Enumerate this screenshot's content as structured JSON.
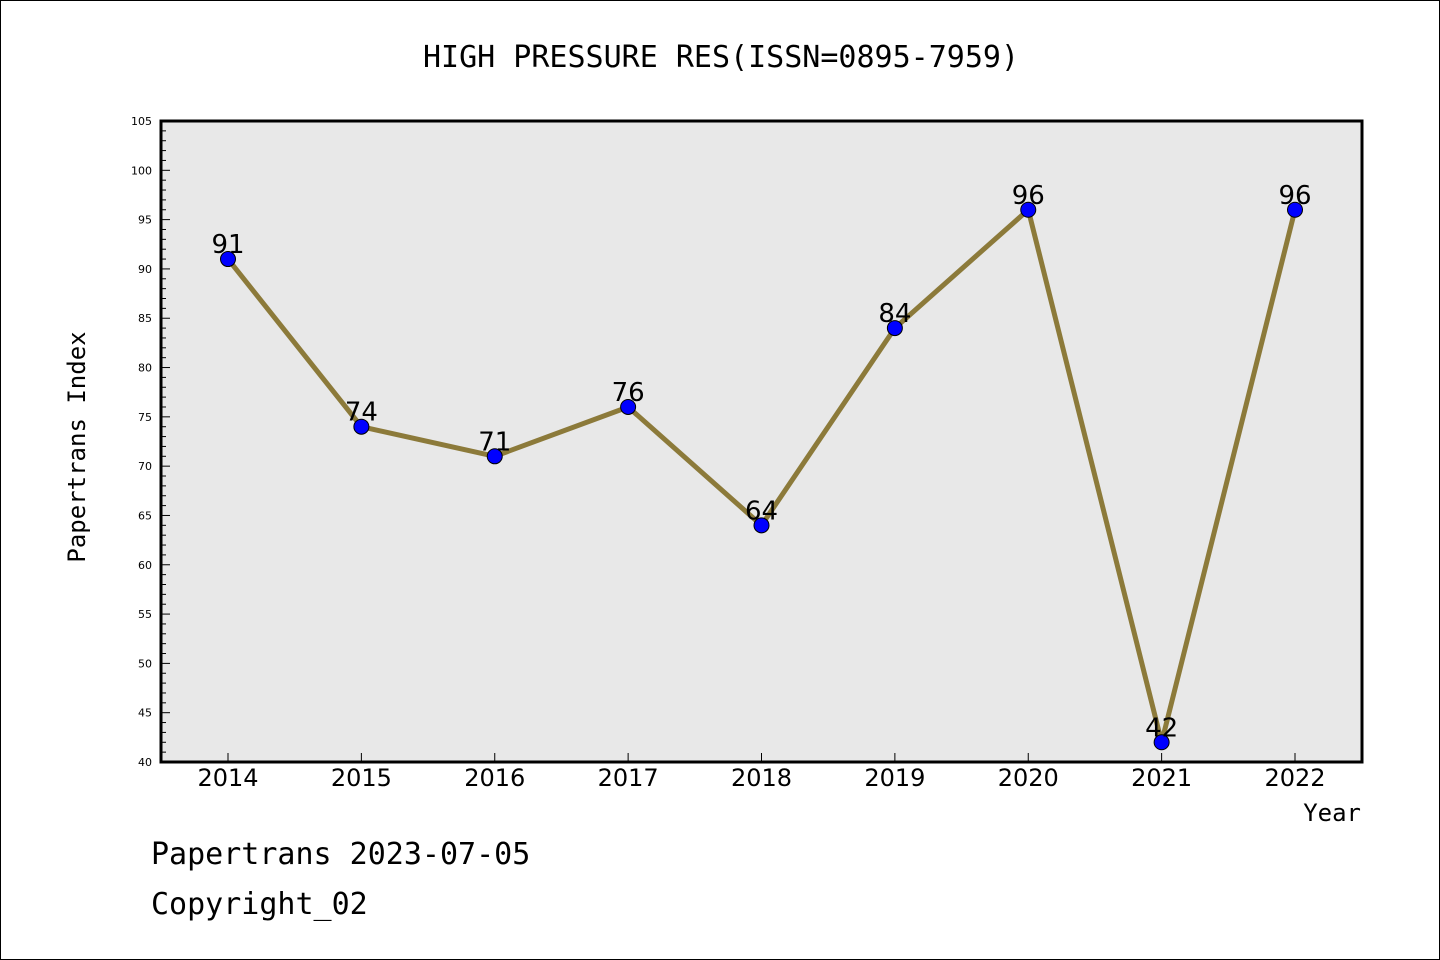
{
  "chart_data": {
    "type": "line",
    "title": "HIGH PRESSURE RES(ISSN=0895-7959)",
    "xlabel": "Year",
    "ylabel": "Papertrans Index",
    "categories": [
      "2014",
      "2015",
      "2016",
      "2017",
      "2018",
      "2019",
      "2020",
      "2021",
      "2022"
    ],
    "series": [
      {
        "values": [
          91,
          74,
          71,
          76,
          64,
          84,
          96,
          42,
          96
        ]
      }
    ],
    "ylim": [
      40,
      105
    ],
    "yticks": [
      "40",
      "45",
      "50",
      "55",
      "60",
      "65",
      "70",
      "75",
      "80",
      "85",
      "90",
      "95",
      "100",
      "105"
    ],
    "grid": false,
    "data_labels": true,
    "colors": {
      "line": "#8c7a3a",
      "marker": "#0000ff",
      "plot_background": "#e8e8e8"
    }
  },
  "footer": {
    "date_text": "Papertrans 2023-07-05",
    "copyright_text": "Copyright_02"
  }
}
